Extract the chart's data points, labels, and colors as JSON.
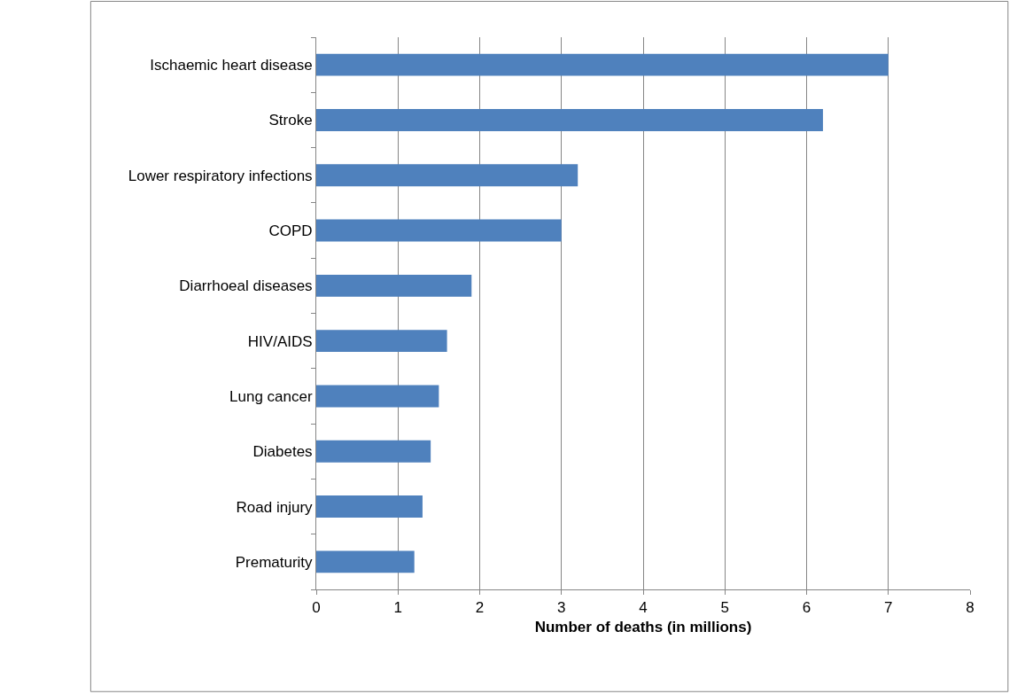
{
  "chart_data": {
    "type": "bar",
    "orientation": "horizontal",
    "xlabel": "Number of deaths (in millions)",
    "categories": [
      "Ischaemic heart disease",
      "Stroke",
      "Lower respiratory infections",
      "COPD",
      "Diarrhoeal diseases",
      "HIV/AIDS",
      "Lung cancer",
      "Diabetes",
      "Road injury",
      "Prematurity"
    ],
    "values": [
      7.0,
      6.2,
      3.2,
      3.0,
      1.9,
      1.6,
      1.5,
      1.4,
      1.3,
      1.2
    ],
    "color": "#4f81bd",
    "xlim": [
      0,
      8
    ],
    "xticks": [
      0,
      1,
      2,
      3,
      4,
      5,
      6,
      7,
      8
    ],
    "grid": "x",
    "legend": false
  }
}
